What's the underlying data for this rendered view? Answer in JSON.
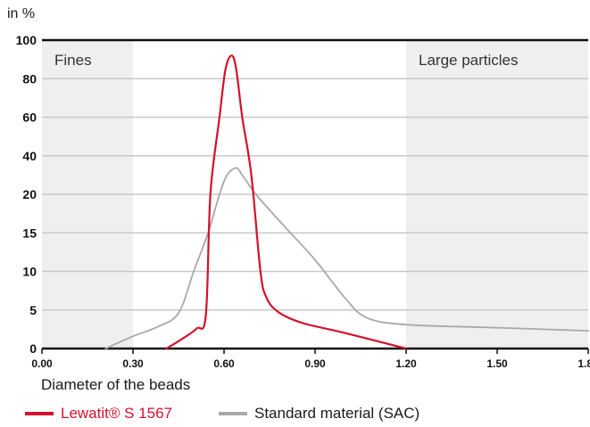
{
  "chart_data": {
    "type": "line",
    "ylabel": "in %",
    "xlabel": "Diameter of the beads",
    "x_ticks": [
      "0.00",
      "0.30",
      "0.60",
      "0.90",
      "1.20",
      "1.50",
      "1.80"
    ],
    "x_tick_values": [
      0.0,
      0.3,
      0.6,
      0.9,
      1.2,
      1.5,
      1.8
    ],
    "y_ticks": [
      "0",
      "5",
      "10",
      "15",
      "20",
      "40",
      "60",
      "80",
      "100"
    ],
    "xlim": [
      0.0,
      1.8
    ],
    "grid": true,
    "regions": [
      {
        "label": "Fines",
        "x_from": 0.0,
        "x_to": 0.3,
        "color": "#efefef"
      },
      {
        "label": "Large particles",
        "x_from": 1.2,
        "x_to": 1.8,
        "color": "#efefef"
      }
    ],
    "series": [
      {
        "name": "Lewatit® S 1567",
        "color": "#d5102d",
        "points": [
          [
            0.41,
            0
          ],
          [
            0.46,
            1.2
          ],
          [
            0.51,
            2.6
          ],
          [
            0.54,
            4.3
          ],
          [
            0.555,
            20
          ],
          [
            0.585,
            60
          ],
          [
            0.605,
            85
          ],
          [
            0.625,
            92
          ],
          [
            0.64,
            85
          ],
          [
            0.66,
            60
          ],
          [
            0.69,
            30
          ],
          [
            0.72,
            10
          ],
          [
            0.74,
            6.6
          ],
          [
            0.78,
            4.7
          ],
          [
            0.86,
            3.3
          ],
          [
            1.0,
            2.0
          ],
          [
            1.2,
            0
          ]
        ]
      },
      {
        "name": "Standard material (SAC)",
        "color": "#a9a9a9",
        "points": [
          [
            0.21,
            0
          ],
          [
            0.3,
            1.6
          ],
          [
            0.38,
            2.8
          ],
          [
            0.45,
            4.6
          ],
          [
            0.5,
            10
          ],
          [
            0.55,
            15.3
          ],
          [
            0.585,
            20
          ],
          [
            0.61,
            30
          ],
          [
            0.64,
            33.7
          ],
          [
            0.66,
            30
          ],
          [
            0.705,
            20
          ],
          [
            0.8,
            15.8
          ],
          [
            0.9,
            11.5
          ],
          [
            1.0,
            6.5
          ],
          [
            1.07,
            4.0
          ],
          [
            1.2,
            3.1
          ],
          [
            1.5,
            2.7
          ],
          [
            1.8,
            2.3
          ]
        ]
      }
    ]
  }
}
